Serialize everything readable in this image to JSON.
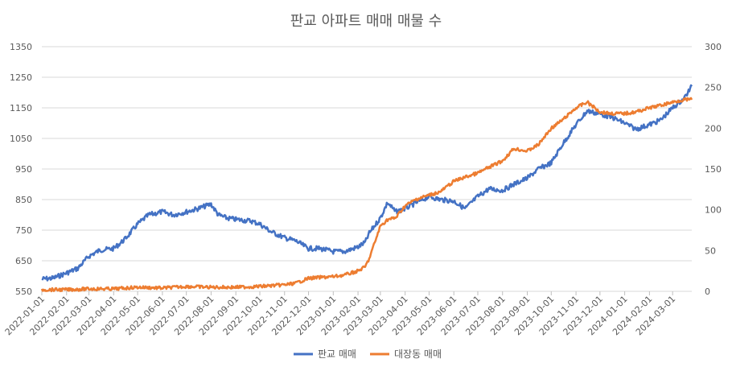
{
  "chart_data": {
    "type": "line",
    "title": "판교 아파트 매매 매물 수",
    "xlabel": "",
    "ylabel": "",
    "grid": true,
    "legend_position": "bottom",
    "x_ticks": [
      "2022-01-01",
      "2022-02-01",
      "2022-03-01",
      "2022-04-01",
      "2022-05-01",
      "2022-06-01",
      "2022-07-01",
      "2022-08-01",
      "2022-09-01",
      "2022-10-01",
      "2022-11-01",
      "2022-12-01",
      "2023-01-01",
      "2023-02-01",
      "2023-03-01",
      "2023-04-01",
      "2023-05-01",
      "2023-06-01",
      "2023-07-01",
      "2023-08-01",
      "2023-09-01",
      "2023-10-01",
      "2023-11-01",
      "2023-12-01",
      "2024-01-01",
      "2024-02-01",
      "2024-03-01"
    ],
    "x_range": [
      "2022-01-01",
      "2024-03-25"
    ],
    "y_left": {
      "range": [
        550,
        1350
      ],
      "ticks": [
        550,
        650,
        750,
        850,
        950,
        1050,
        1150,
        1250,
        1350
      ]
    },
    "y_right": {
      "range": [
        0,
        300
      ],
      "ticks": [
        0,
        50,
        100,
        150,
        200,
        250,
        300
      ]
    },
    "series": [
      {
        "name": "판교 매매",
        "axis": "left",
        "color": "#4472c4",
        "x": [
          "2022-01-01",
          "2022-01-15",
          "2022-02-01",
          "2022-02-15",
          "2022-03-01",
          "2022-03-15",
          "2022-04-01",
          "2022-04-15",
          "2022-05-01",
          "2022-05-15",
          "2022-06-01",
          "2022-06-15",
          "2022-07-01",
          "2022-07-15",
          "2022-08-01",
          "2022-08-10",
          "2022-08-20",
          "2022-09-01",
          "2022-09-20",
          "2022-10-01",
          "2022-10-15",
          "2022-11-01",
          "2022-11-15",
          "2022-12-01",
          "2022-12-15",
          "2023-01-01",
          "2023-01-15",
          "2023-02-01",
          "2023-02-10",
          "2023-02-15",
          "2023-03-01",
          "2023-03-10",
          "2023-03-20",
          "2023-04-01",
          "2023-04-15",
          "2023-05-01",
          "2023-05-15",
          "2023-06-01",
          "2023-06-15",
          "2023-07-01",
          "2023-07-15",
          "2023-08-01",
          "2023-08-15",
          "2023-09-01",
          "2023-09-15",
          "2023-10-01",
          "2023-10-15",
          "2023-11-01",
          "2023-11-15",
          "2023-12-01",
          "2023-12-15",
          "2024-01-01",
          "2024-01-15",
          "2024-02-01",
          "2024-02-15",
          "2024-03-01",
          "2024-03-15",
          "2024-03-25"
        ],
        "values": [
          590,
          593,
          610,
          625,
          665,
          685,
          690,
          720,
          770,
          800,
          810,
          800,
          810,
          820,
          835,
          800,
          790,
          785,
          780,
          770,
          745,
          725,
          715,
          690,
          690,
          680,
          680,
          695,
          710,
          740,
          790,
          840,
          810,
          820,
          840,
          860,
          850,
          845,
          820,
          860,
          885,
          880,
          900,
          920,
          950,
          970,
          1030,
          1095,
          1140,
          1130,
          1120,
          1100,
          1080,
          1095,
          1110,
          1150,
          1180,
          1220
        ]
      },
      {
        "name": "대장동 매매",
        "axis": "right",
        "color": "#ed7d31",
        "x": [
          "2022-01-01",
          "2022-01-15",
          "2022-02-01",
          "2022-03-01",
          "2022-04-01",
          "2022-05-01",
          "2022-06-01",
          "2022-07-01",
          "2022-08-01",
          "2022-09-01",
          "2022-10-01",
          "2022-11-01",
          "2022-11-15",
          "2022-12-01",
          "2022-12-15",
          "2023-01-01",
          "2023-01-15",
          "2023-02-01",
          "2023-02-10",
          "2023-02-15",
          "2023-02-22",
          "2023-03-01",
          "2023-03-10",
          "2023-03-20",
          "2023-04-01",
          "2023-04-15",
          "2023-05-01",
          "2023-05-15",
          "2023-06-01",
          "2023-06-15",
          "2023-07-01",
          "2023-07-15",
          "2023-08-01",
          "2023-08-15",
          "2023-09-01",
          "2023-09-15",
          "2023-10-01",
          "2023-10-15",
          "2023-11-01",
          "2023-11-15",
          "2023-12-01",
          "2023-12-15",
          "2024-01-01",
          "2024-01-15",
          "2024-02-01",
          "2024-02-15",
          "2024-03-01",
          "2024-03-15",
          "2024-03-25"
        ],
        "values": [
          2,
          2,
          2,
          3,
          3,
          5,
          4,
          6,
          5,
          5,
          6,
          8,
          10,
          16,
          17,
          18,
          20,
          25,
          30,
          40,
          60,
          80,
          88,
          90,
          105,
          113,
          118,
          122,
          135,
          140,
          145,
          152,
          160,
          175,
          172,
          180,
          200,
          210,
          225,
          232,
          220,
          218,
          218,
          220,
          225,
          228,
          232,
          235,
          235
        ]
      }
    ]
  }
}
